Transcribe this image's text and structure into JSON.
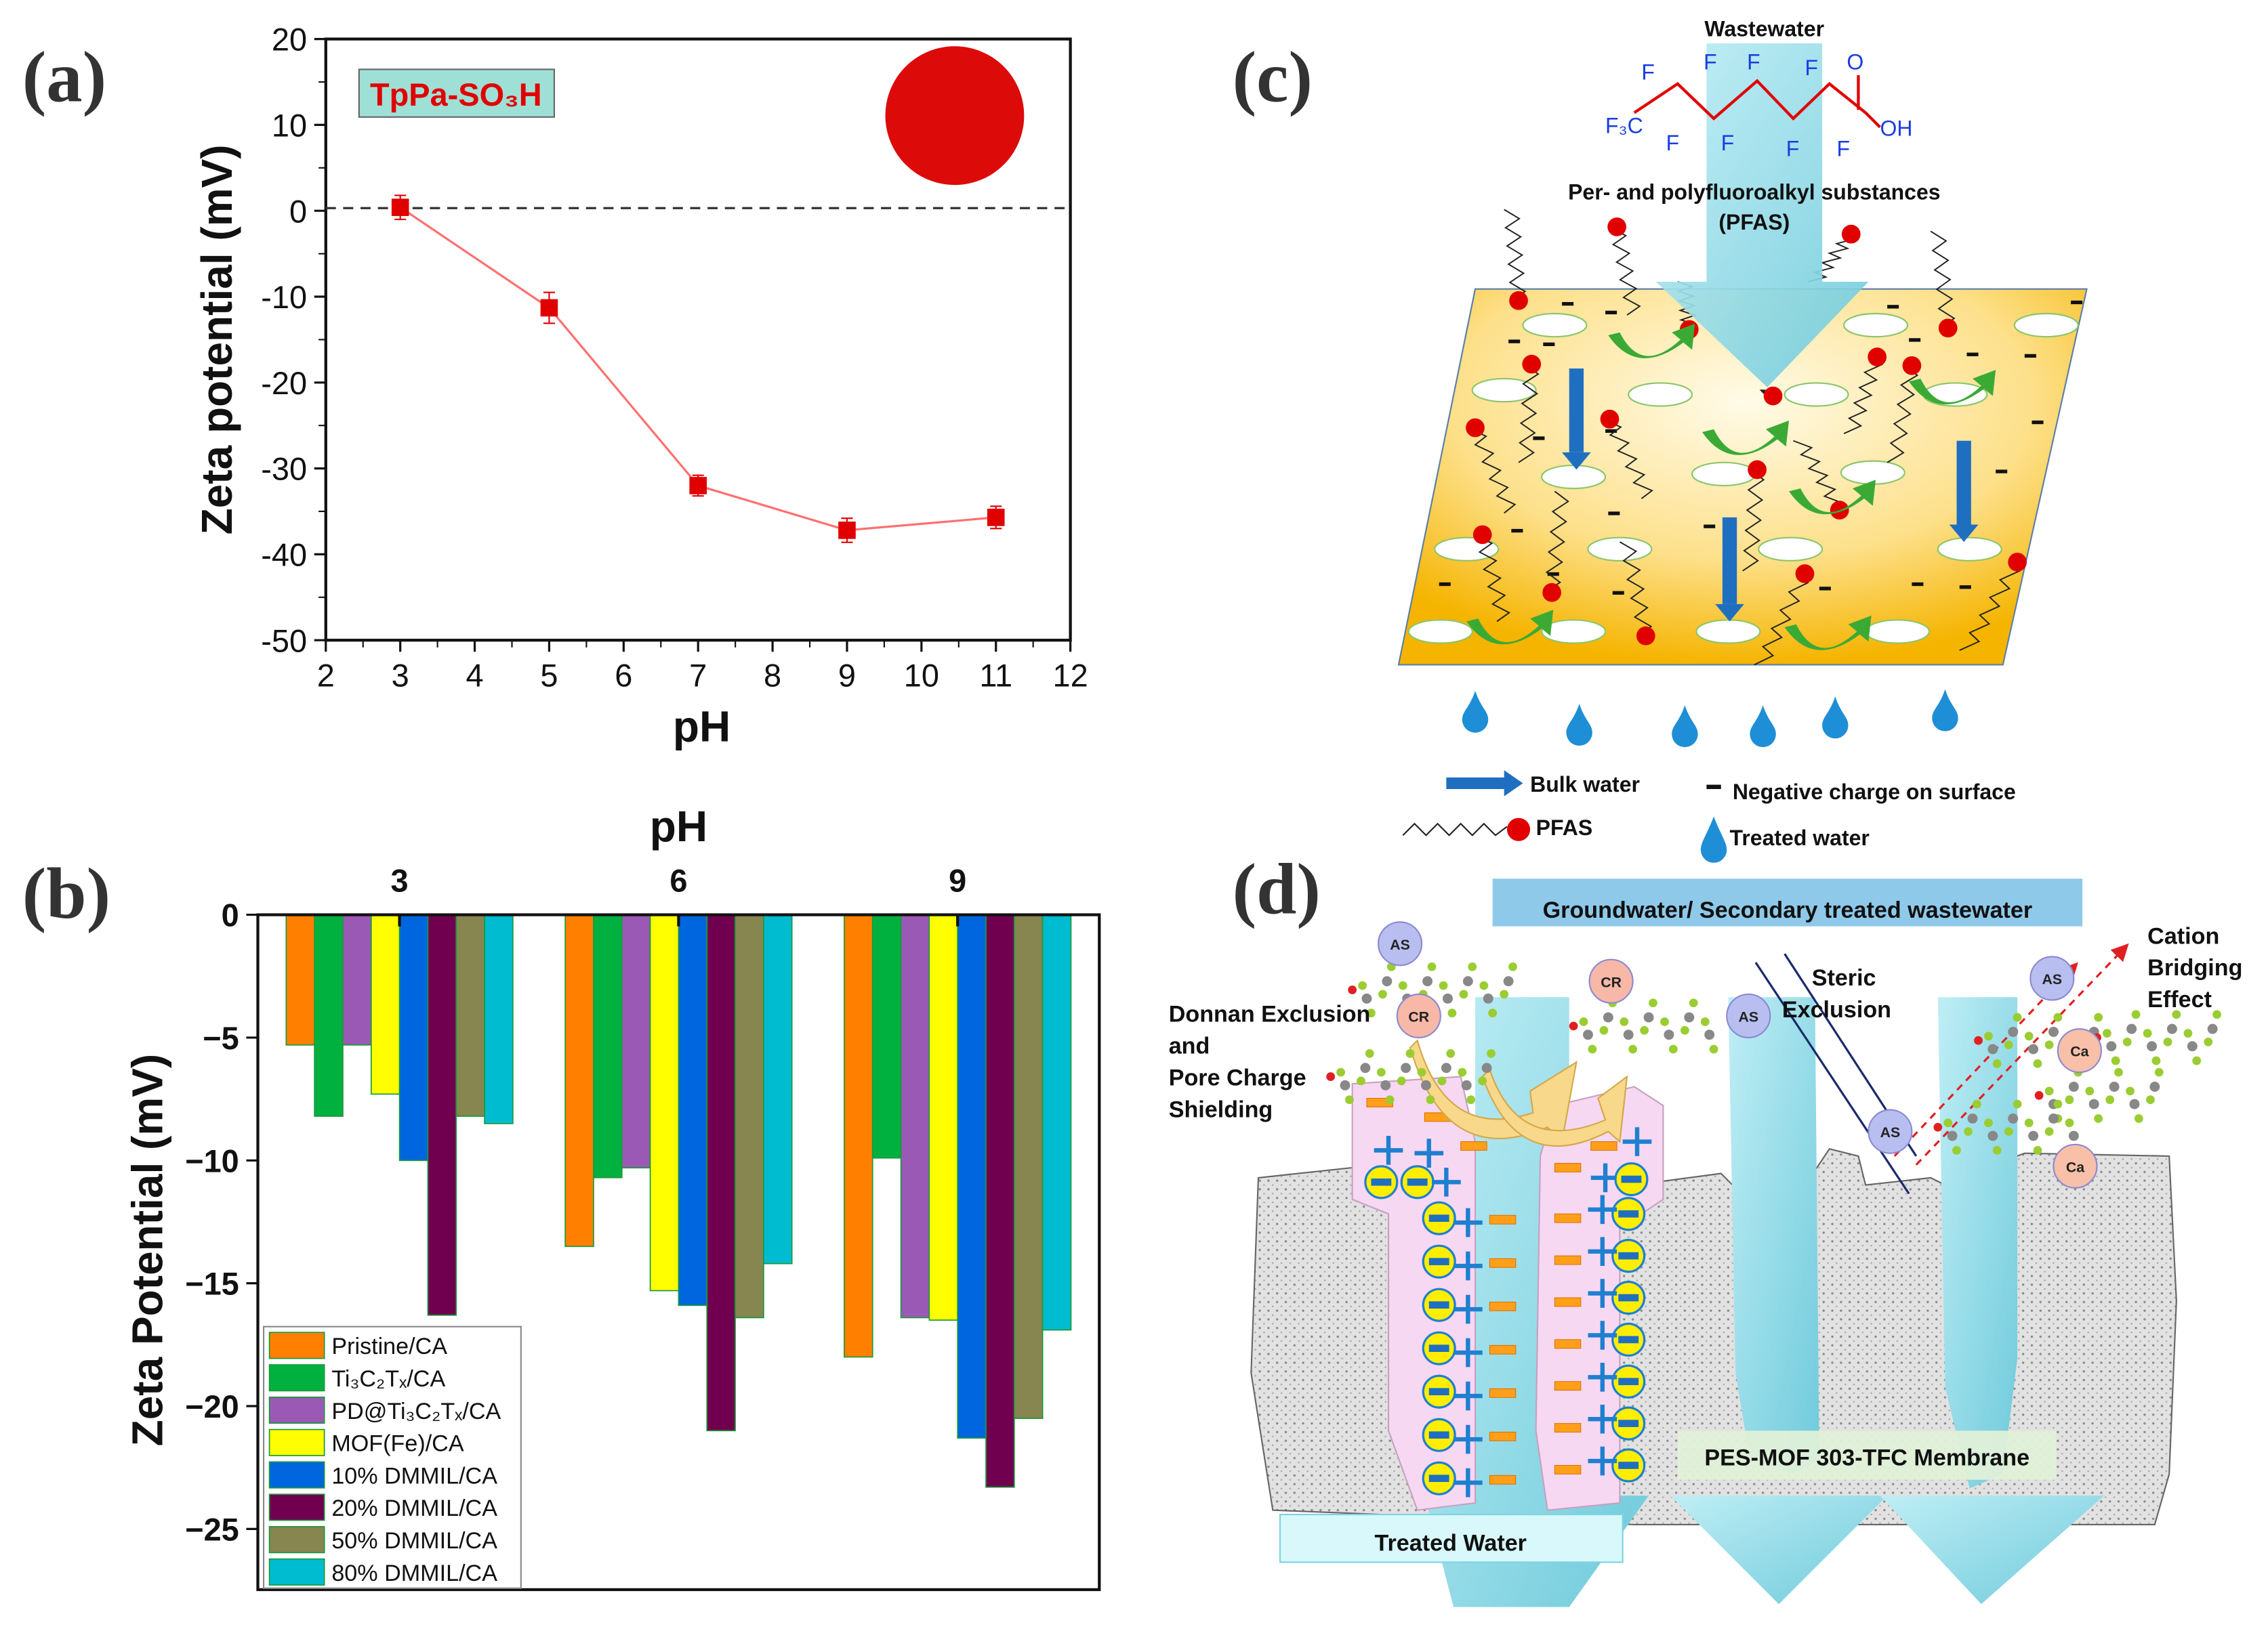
{
  "panel_labels": {
    "a": "(a)",
    "b": "(b)",
    "c": "(c)",
    "d": "(d)"
  },
  "colors": {
    "series_a": "#e00000",
    "line_a": "#ff7070",
    "bulk_arrow": "#1f6fc0",
    "pfas": "#e00000",
    "curve_arrow": "#3aaa35",
    "membrane_c": "#f7b500",
    "water": "#7fd3e0"
  },
  "chart_data": [
    {
      "type": "line",
      "title": "",
      "annotation": "TpPa-SO₃H",
      "xlabel": "pH",
      "ylabel": "Zeta potential (mV)",
      "xlim": [
        2,
        12
      ],
      "ylim": [
        -50,
        20
      ],
      "xticks": [
        "2",
        "3",
        "4",
        "5",
        "6",
        "7",
        "8",
        "9",
        "10",
        "11",
        "12"
      ],
      "yticks": [
        "20",
        "10",
        "0",
        "-10",
        "-20",
        "-30",
        "-40",
        "-50"
      ],
      "reference_line": 0,
      "x": [
        3,
        5,
        7,
        9,
        11
      ],
      "y": [
        0.4,
        -11.3,
        -32.0,
        -37.2,
        -35.7
      ],
      "error": [
        1.4,
        1.8,
        1.2,
        1.4,
        1.3
      ],
      "grid": false
    },
    {
      "type": "bar",
      "title": "pH",
      "xlabel": "pH",
      "ylabel": "Zeta Potential (mV)",
      "ylim": [
        -27.5,
        0
      ],
      "yticks": [
        "0",
        "-5",
        "-10",
        "-15",
        "-20",
        "-25"
      ],
      "categories": [
        "3",
        "6",
        "9"
      ],
      "legend_position": "bottom-left",
      "series": [
        {
          "name": "Pristine/CA",
          "color": "#ff8000",
          "values": [
            -5.3,
            -13.5,
            -18.0
          ]
        },
        {
          "name": "Ti₃C₂Tₓ/CA",
          "color": "#00b140",
          "values": [
            -8.2,
            -10.7,
            -9.9
          ]
        },
        {
          "name": "PD@Ti₃C₂Tₓ/CA",
          "color": "#9b59b6",
          "values": [
            -5.3,
            -10.3,
            -16.4
          ]
        },
        {
          "name": "MOF(Fe)/CA",
          "color": "#ffff00",
          "values": [
            -7.3,
            -15.3,
            -16.5
          ]
        },
        {
          "name": "10% DMMIL/CA",
          "color": "#0066e0",
          "values": [
            -10.0,
            -15.9,
            -21.3
          ]
        },
        {
          "name": "20% DMMIL/CA",
          "color": "#70004f",
          "values": [
            -16.3,
            -21.0,
            -23.3
          ]
        },
        {
          "name": "50% DMMIL/CA",
          "color": "#878550",
          "values": [
            -8.2,
            -16.4,
            -20.5
          ]
        },
        {
          "name": "80% DMMIL/CA",
          "color": "#00bcd0",
          "values": [
            -8.5,
            -14.2,
            -16.9
          ]
        }
      ]
    }
  ],
  "diagram_c": {
    "wastewater": "Wastewater",
    "molecule": {
      "f3c": "F₃C",
      "f": "F",
      "o": "O",
      "oh": "OH"
    },
    "pfas_title": "Per- and polyfluoroalkyl substances",
    "pfas_abbr": "(PFAS)",
    "legend": {
      "bulk_water": "Bulk water",
      "pfas": "PFAS",
      "negative_charge": "Negative charge on surface",
      "treated_water": "Treated water"
    }
  },
  "diagram_d": {
    "header": "Groundwater/ Secondary treated wastewater",
    "donnan": [
      "Donnan Exclusion",
      "and",
      "Pore Charge",
      "Shielding"
    ],
    "steric": [
      "Steric",
      "Exclusion"
    ],
    "cation": [
      "Cation",
      "Bridging",
      "Effect"
    ],
    "membrane": "PES-MOF 303-TFC Membrane",
    "treated": "Treated Water",
    "ions": {
      "as": "AS",
      "cr": "CR",
      "ca": "Ca"
    }
  }
}
